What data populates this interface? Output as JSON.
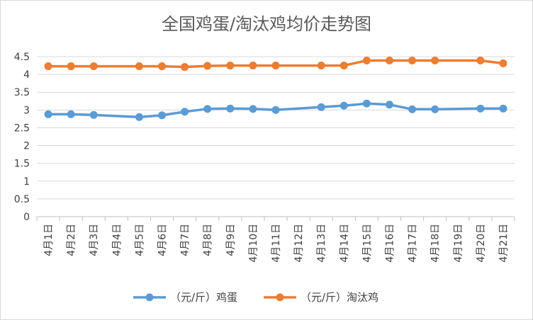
{
  "chart_data": {
    "type": "line",
    "title": "全国鸡蛋/淘汰鸡均价走势图",
    "xlabel": "",
    "ylabel": "",
    "categories": [
      "4月1日",
      "4月2日",
      "4月3日",
      "4月4日",
      "4月5日",
      "4月6日",
      "4月7日",
      "4月8日",
      "4月9日",
      "4月10日",
      "4月11日",
      "4月12日",
      "4月13日",
      "4月14日",
      "4月15日",
      "4月16日",
      "4月17日",
      "4月18日",
      "4月19日",
      "4月20日",
      "4月21日"
    ],
    "ylim": [
      0,
      4.5
    ],
    "yticks": [
      "0",
      "0.5",
      "1",
      "1.5",
      "2",
      "2.5",
      "3",
      "3.5",
      "4",
      "4.5"
    ],
    "grid": true,
    "legend_position": "bottom",
    "series": [
      {
        "name": "（元/斤）鸡蛋",
        "color": "#5B9BD5",
        "values": [
          2.88,
          2.88,
          2.86,
          null,
          2.8,
          2.85,
          2.95,
          3.03,
          3.04,
          3.03,
          3.0,
          null,
          3.08,
          3.12,
          3.18,
          3.15,
          3.02,
          3.02,
          null,
          3.04,
          3.04
        ]
      },
      {
        "name": "（元/斤）淘汰鸡",
        "color": "#ED7D31",
        "values": [
          4.23,
          4.23,
          4.23,
          null,
          4.23,
          4.23,
          4.21,
          4.24,
          4.25,
          4.25,
          4.25,
          null,
          4.25,
          4.25,
          4.39,
          4.39,
          4.39,
          4.39,
          null,
          4.39,
          4.31
        ]
      }
    ]
  }
}
